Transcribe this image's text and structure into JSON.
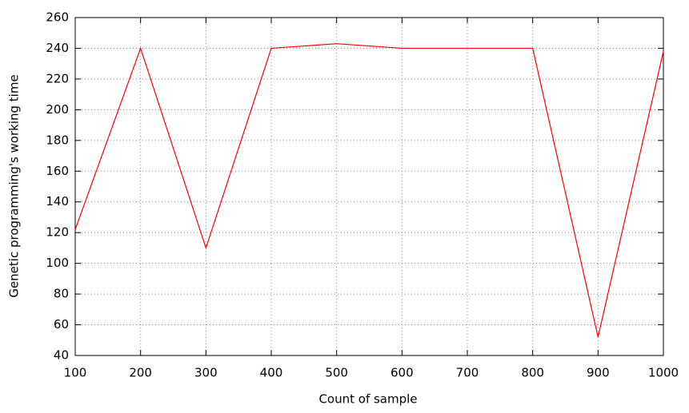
{
  "chart_data": {
    "type": "line",
    "x_label": "Count of sample",
    "y_label": "Genetic programming's working time",
    "x": [
      100,
      200,
      300,
      400,
      500,
      600,
      700,
      800,
      900,
      1000
    ],
    "series": [
      {
        "color": "#ff0000",
        "values": [
          122,
          240,
          110,
          240,
          243,
          240,
          240,
          240,
          52,
          238
        ]
      }
    ],
    "xlim": [
      100,
      1000
    ],
    "xticks": [
      100,
      200,
      300,
      400,
      500,
      600,
      700,
      800,
      900,
      1000
    ],
    "ylim": [
      40,
      260
    ],
    "yticks": [
      40,
      60,
      80,
      100,
      120,
      140,
      160,
      180,
      200,
      220,
      240,
      260
    ],
    "grid": true
  }
}
